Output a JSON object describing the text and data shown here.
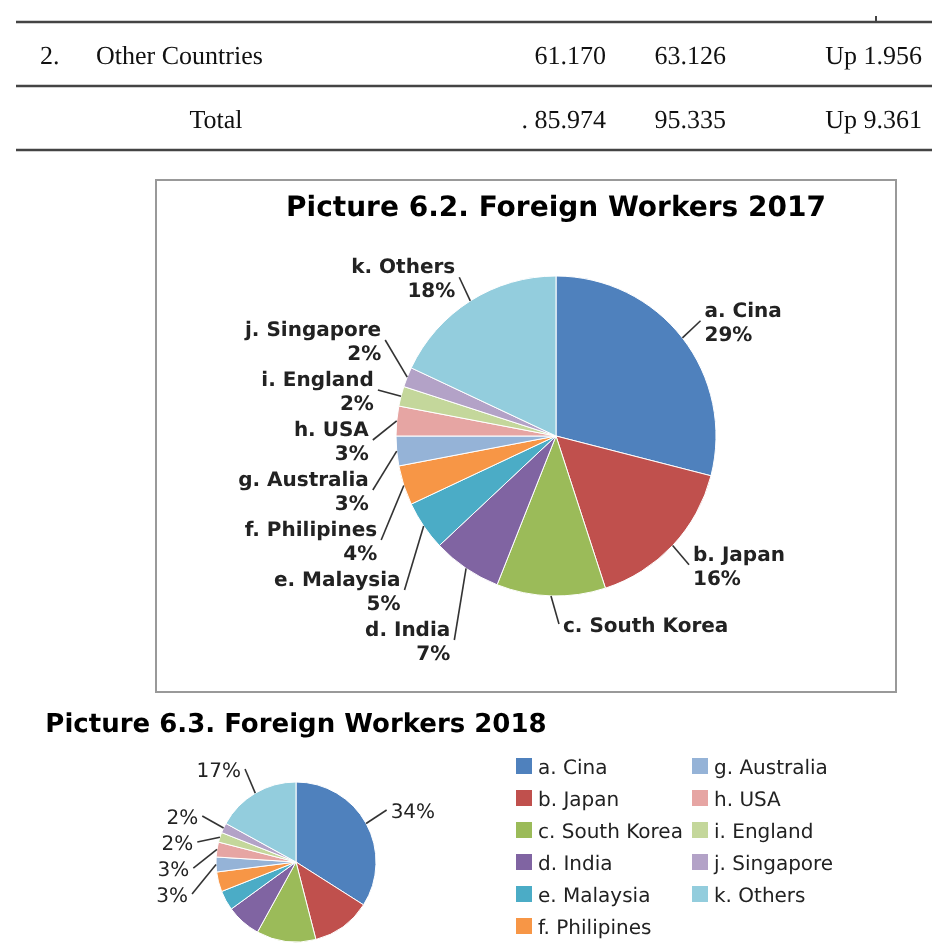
{
  "chart_data": [
    {
      "type": "other",
      "annotations": [
        "2.",
        "Other Countries",
        "61.170",
        "63.126",
        "Up 1.956",
        "Total",
        ". 85.974",
        "95.335",
        "Up 9.361"
      ]
    },
    {
      "type": "pie",
      "title": "Picture 6.2.  Foreign Workers 2017",
      "legend": false,
      "categories": [
        "a. Cina",
        "b. Japan",
        "c. South Korea",
        "d. India",
        "e. Malaysia",
        "f. Philipines",
        "g. Australia",
        "h. USA",
        "i. England",
        "j. Singapore",
        "k. Others"
      ],
      "values": [
        29,
        16,
        11,
        7,
        5,
        4,
        3,
        3,
        2,
        2,
        18
      ],
      "value_labels": [
        "29%",
        "16%",
        null,
        "7%",
        "5%",
        "4%",
        "3%",
        "3%",
        "2%",
        "2%",
        "18%"
      ],
      "colors": [
        "#4f81bd",
        "#c0504d",
        "#9bbb59",
        "#8064a2",
        "#4bacc6",
        "#f79646",
        "#95b3d7",
        "#e6a5a3",
        "#c4d79b",
        "#b3a2c7",
        "#93cddd"
      ]
    },
    {
      "type": "pie",
      "title": "Picture 6.3. Foreign Workers 2018",
      "legend": "right",
      "categories": [
        "a. Cina",
        "b. Japan",
        "c. South Korea",
        "d. India",
        "e. Malaysia",
        "f. Philipines",
        "g. Australia",
        "h. USA",
        "i. England",
        "j. Singapore",
        "k. Others"
      ],
      "values": [
        34,
        12,
        12,
        7,
        4,
        4,
        3,
        3,
        2,
        2,
        17
      ],
      "value_labels": [
        "34%",
        null,
        null,
        null,
        null,
        null,
        "3%",
        "3%",
        "2%",
        "2%",
        "17%"
      ],
      "colors": [
        "#4f81bd",
        "#c0504d",
        "#9bbb59",
        "#8064a2",
        "#4bacc6",
        "#f79646",
        "#95b3d7",
        "#e6a5a3",
        "#c4d79b",
        "#b3a2c7",
        "#93cddd"
      ]
    }
  ]
}
